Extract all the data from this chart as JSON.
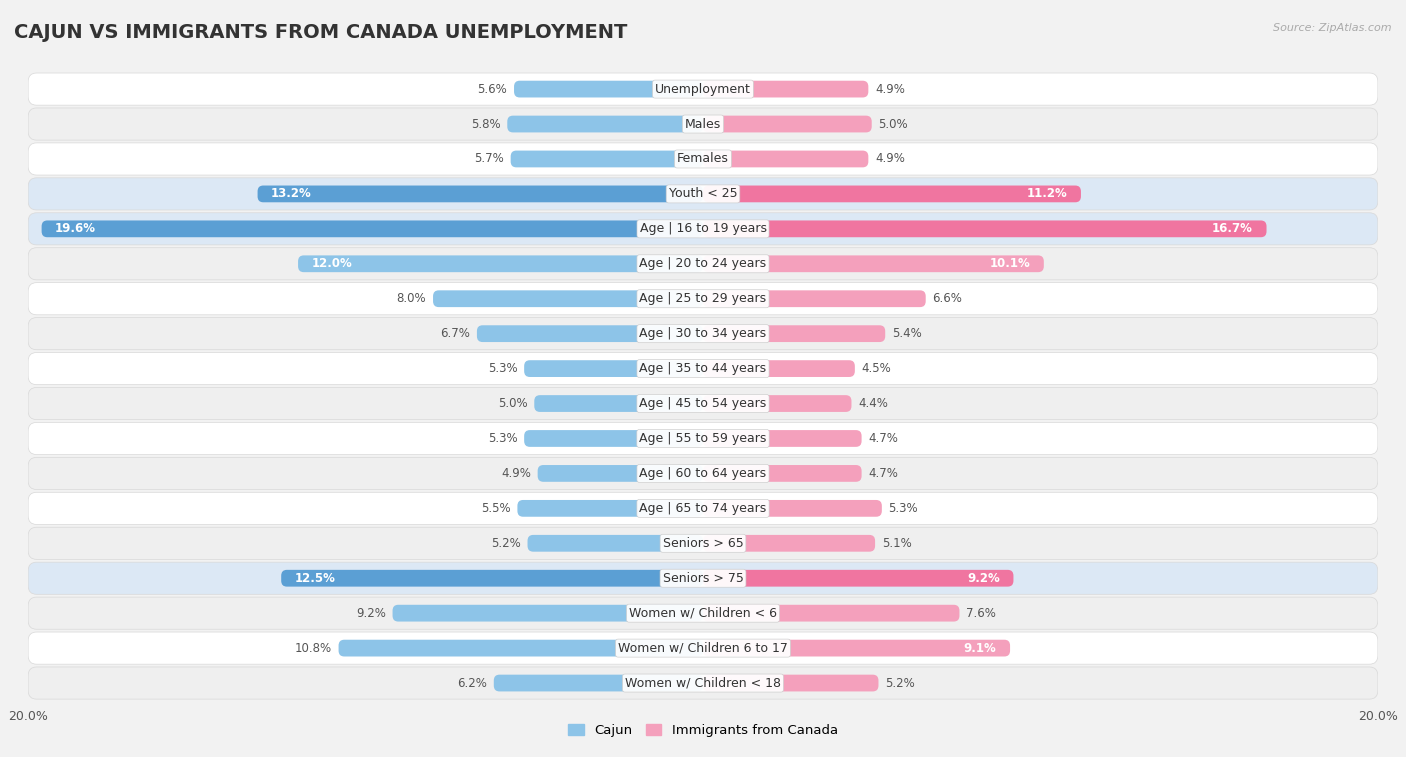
{
  "title": "CAJUN VS IMMIGRANTS FROM CANADA UNEMPLOYMENT",
  "source": "Source: ZipAtlas.com",
  "categories": [
    "Unemployment",
    "Males",
    "Females",
    "Youth < 25",
    "Age | 16 to 19 years",
    "Age | 20 to 24 years",
    "Age | 25 to 29 years",
    "Age | 30 to 34 years",
    "Age | 35 to 44 years",
    "Age | 45 to 54 years",
    "Age | 55 to 59 years",
    "Age | 60 to 64 years",
    "Age | 65 to 74 years",
    "Seniors > 65",
    "Seniors > 75",
    "Women w/ Children < 6",
    "Women w/ Children 6 to 17",
    "Women w/ Children < 18"
  ],
  "cajun_values": [
    5.6,
    5.8,
    5.7,
    13.2,
    19.6,
    12.0,
    8.0,
    6.7,
    5.3,
    5.0,
    5.3,
    4.9,
    5.5,
    5.2,
    12.5,
    9.2,
    10.8,
    6.2
  ],
  "canada_values": [
    4.9,
    5.0,
    4.9,
    11.2,
    16.7,
    10.1,
    6.6,
    5.4,
    4.5,
    4.4,
    4.7,
    4.7,
    5.3,
    5.1,
    9.2,
    7.6,
    9.1,
    5.2
  ],
  "cajun_color_normal": "#8dc4e8",
  "cajun_color_highlight": "#5b9fd4",
  "canada_color_normal": "#f4a0bc",
  "canada_color_highlight": "#f075a0",
  "row_bg_white": "#ffffff",
  "row_bg_gray": "#efefef",
  "row_bg_highlight": "#dce8f5",
  "row_border_color": "#d8d8d8",
  "highlight_rows": [
    3,
    4,
    14
  ],
  "axis_limit": 20.0,
  "legend_cajun": "Cajun",
  "legend_canada": "Immigrants from Canada",
  "title_fontsize": 14,
  "label_fontsize": 9,
  "value_fontsize": 8.5,
  "background_color": "#f2f2f2"
}
